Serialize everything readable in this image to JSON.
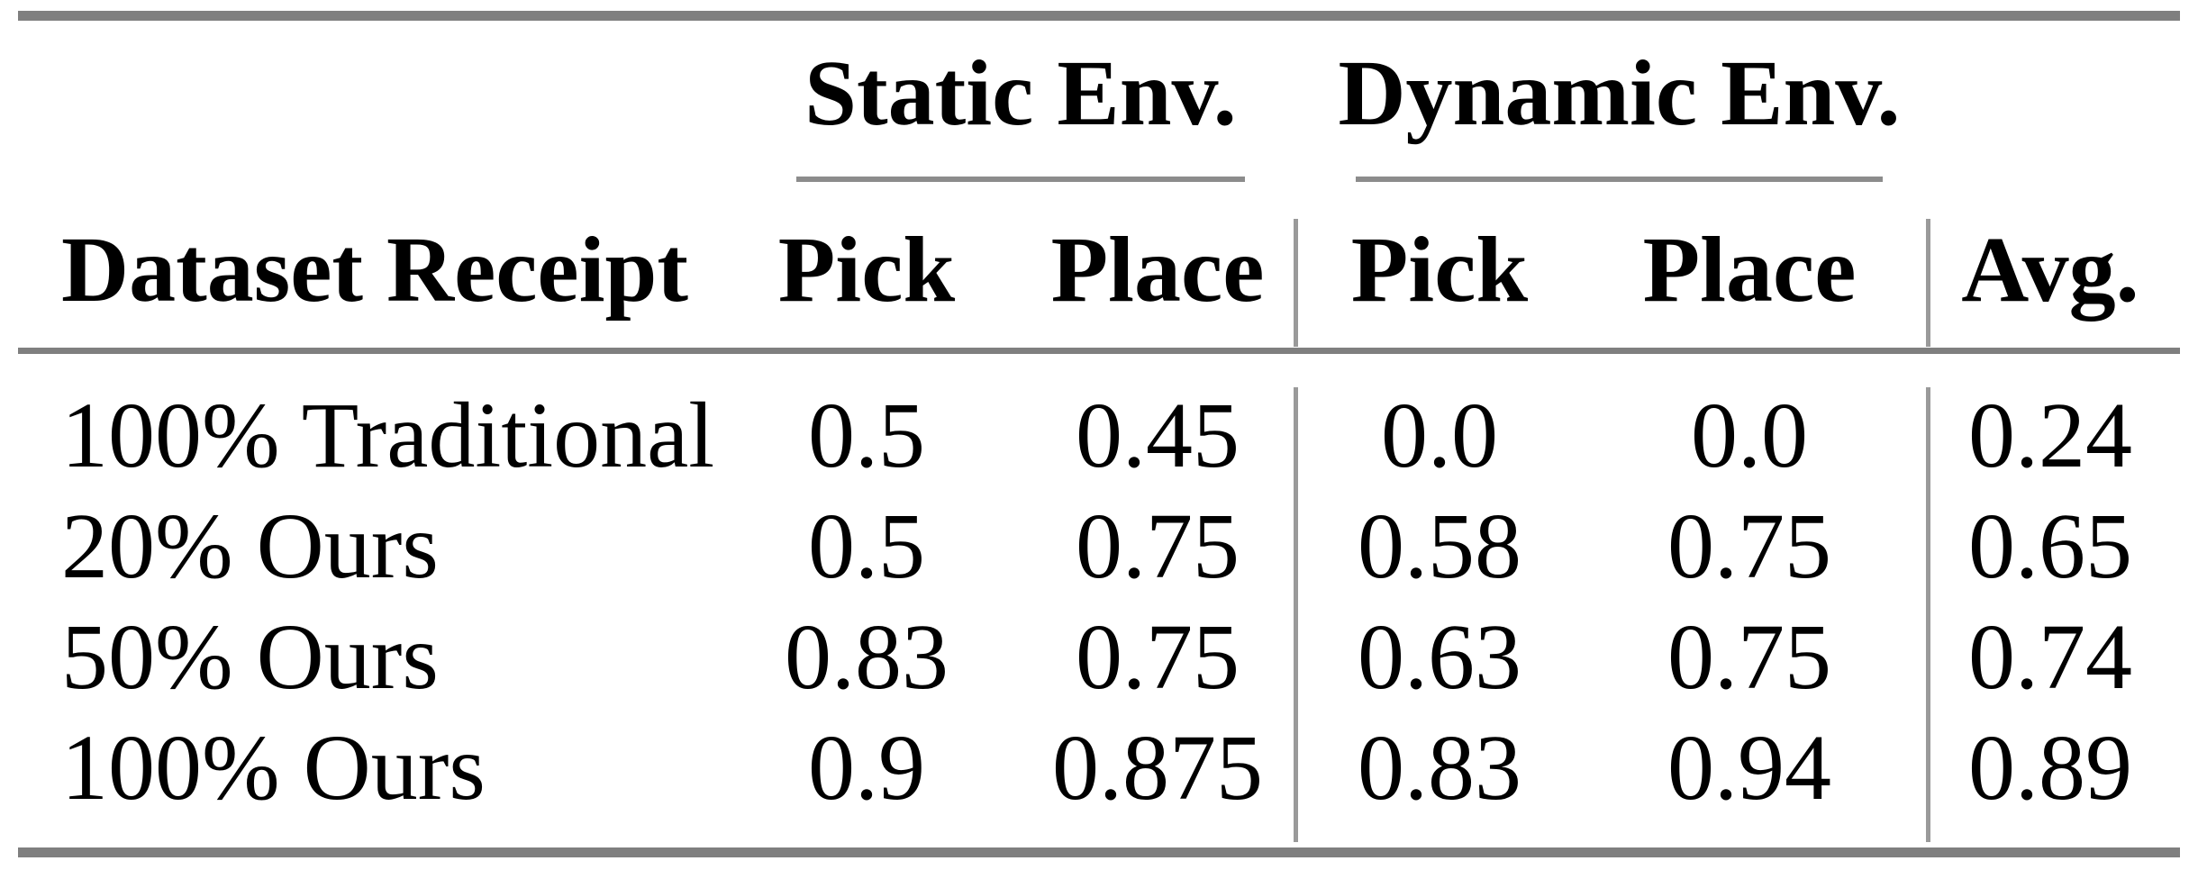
{
  "colors": {
    "background": "#ffffff",
    "text": "#000000",
    "rule_heavy": "#7f7f7f",
    "rule_cmid": "#8c8c8c",
    "rule_vertical": "#9a9a9a"
  },
  "table": {
    "group_headers": [
      {
        "label": "Static Env."
      },
      {
        "label": "Dynamic Env."
      }
    ],
    "column_headers": {
      "dataset": "Dataset Receipt",
      "static_pick": "Pick",
      "static_place": "Place",
      "dynamic_pick": "Pick",
      "dynamic_place": "Place",
      "avg": "Avg."
    },
    "rows": [
      {
        "dataset": "100% Traditional",
        "static_pick": "0.5",
        "static_place": "0.45",
        "dynamic_pick": "0.0",
        "dynamic_place": "0.0",
        "avg": "0.24"
      },
      {
        "dataset": "20% Ours",
        "static_pick": "0.5",
        "static_place": "0.75",
        "dynamic_pick": "0.58",
        "dynamic_place": "0.75",
        "avg": "0.65"
      },
      {
        "dataset": "50% Ours",
        "static_pick": "0.83",
        "static_place": "0.75",
        "dynamic_pick": "0.63",
        "dynamic_place": "0.75",
        "avg": "0.74"
      },
      {
        "dataset": "100% Ours",
        "static_pick": "0.9",
        "static_place": "0.875",
        "dynamic_pick": "0.83",
        "dynamic_place": "0.94",
        "avg": "0.89"
      }
    ]
  },
  "chart_data": {
    "type": "table",
    "title": "",
    "column_groups": [
      "",
      "Static Env.",
      "Static Env.",
      "Dynamic Env.",
      "Dynamic Env.",
      ""
    ],
    "columns": [
      "Dataset Receipt",
      "Pick",
      "Place",
      "Pick",
      "Place",
      "Avg."
    ],
    "rows": [
      [
        "100% Traditional",
        0.5,
        0.45,
        0.0,
        0.0,
        0.24
      ],
      [
        "20% Ours",
        0.5,
        0.75,
        0.58,
        0.75,
        0.65
      ],
      [
        "50% Ours",
        0.83,
        0.75,
        0.63,
        0.75,
        0.74
      ],
      [
        "100% Ours",
        0.9,
        0.875,
        0.83,
        0.94,
        0.89
      ]
    ]
  }
}
